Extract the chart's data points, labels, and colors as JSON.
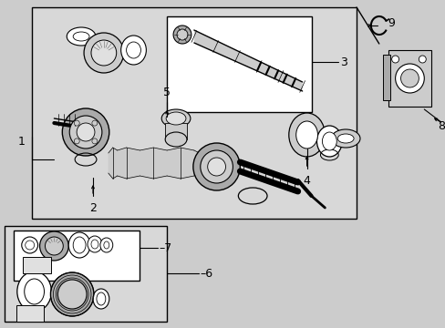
{
  "bg_color": "#cccccc",
  "main_box_fc": "#d4d4d4",
  "white_box_fc": "#ffffff",
  "fig_w": 4.89,
  "fig_h": 3.6,
  "dpi": 100
}
